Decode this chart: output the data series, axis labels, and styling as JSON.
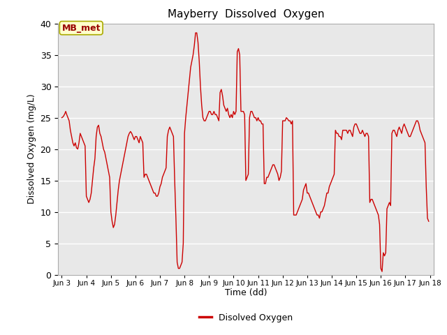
{
  "title": "Mayberry  Dissolved  Oxygen",
  "xlabel": "Time (dd)",
  "ylabel": "Dissolved Oxygen (mg/L)",
  "legend_label": "Disolved Oxygen",
  "annotation_text": "MB_met",
  "line_color": "#cc0000",
  "bg_color": "#e8e8e8",
  "ylim": [
    0,
    40
  ],
  "xlim_start": 2.85,
  "xlim_end": 18.15,
  "xtick_labels": [
    "Jun 3",
    "Jun 4",
    "Jun 5",
    "Jun 6",
    "Jun 7",
    "Jun 8",
    "Jun 9",
    "Jun 10",
    "Jun 11",
    "Jun 12",
    "Jun 13",
    "Jun 14",
    "Jun 15",
    "Jun 16",
    "Jun 17",
    "Jun 18"
  ],
  "xtick_positions": [
    3,
    4,
    5,
    6,
    7,
    8,
    9,
    10,
    11,
    12,
    13,
    14,
    15,
    16,
    17,
    18
  ],
  "ytick_positions": [
    0,
    5,
    10,
    15,
    20,
    25,
    30,
    35,
    40
  ],
  "x": [
    3.0,
    3.04,
    3.08,
    3.12,
    3.16,
    3.2,
    3.25,
    3.3,
    3.35,
    3.4,
    3.45,
    3.5,
    3.55,
    3.6,
    3.65,
    3.7,
    3.75,
    3.8,
    3.85,
    3.9,
    3.95,
    4.0,
    4.05,
    4.1,
    4.15,
    4.2,
    4.25,
    4.3,
    4.35,
    4.4,
    4.45,
    4.5,
    4.55,
    4.6,
    4.65,
    4.7,
    4.75,
    4.8,
    4.85,
    4.9,
    4.95,
    5.0,
    5.05,
    5.1,
    5.15,
    5.2,
    5.25,
    5.3,
    5.35,
    5.4,
    5.45,
    5.5,
    5.55,
    5.6,
    5.65,
    5.7,
    5.75,
    5.8,
    5.85,
    5.9,
    5.95,
    6.0,
    6.05,
    6.1,
    6.15,
    6.2,
    6.25,
    6.3,
    6.35,
    6.4,
    6.45,
    6.5,
    6.55,
    6.6,
    6.65,
    6.7,
    6.75,
    6.8,
    6.85,
    6.9,
    6.95,
    7.0,
    7.05,
    7.1,
    7.15,
    7.2,
    7.25,
    7.3,
    7.35,
    7.4,
    7.45,
    7.5,
    7.55,
    7.6,
    7.65,
    7.7,
    7.75,
    7.8,
    7.85,
    7.9,
    7.95,
    8.0,
    8.05,
    8.1,
    8.15,
    8.2,
    8.25,
    8.3,
    8.35,
    8.4,
    8.45,
    8.5,
    8.55,
    8.6,
    8.65,
    8.7,
    8.75,
    8.8,
    8.85,
    8.9,
    8.95,
    9.0,
    9.05,
    9.1,
    9.15,
    9.2,
    9.25,
    9.3,
    9.35,
    9.4,
    9.45,
    9.5,
    9.55,
    9.6,
    9.65,
    9.7,
    9.75,
    9.8,
    9.85,
    9.9,
    9.95,
    10.0,
    10.05,
    10.1,
    10.15,
    10.2,
    10.25,
    10.3,
    10.35,
    10.4,
    10.45,
    10.5,
    10.55,
    10.6,
    10.65,
    10.7,
    10.75,
    10.8,
    10.85,
    10.9,
    10.95,
    11.0,
    11.05,
    11.1,
    11.15,
    11.2,
    11.25,
    11.3,
    11.35,
    11.4,
    11.45,
    11.5,
    11.55,
    11.6,
    11.65,
    11.7,
    11.75,
    11.8,
    11.85,
    11.9,
    11.95,
    12.0,
    12.05,
    12.1,
    12.15,
    12.2,
    12.25,
    12.3,
    12.35,
    12.4,
    12.45,
    12.5,
    12.55,
    12.6,
    12.65,
    12.7,
    12.75,
    12.8,
    12.85,
    12.9,
    12.95,
    13.0,
    13.05,
    13.1,
    13.15,
    13.2,
    13.25,
    13.3,
    13.35,
    13.4,
    13.45,
    13.5,
    13.55,
    13.6,
    13.65,
    13.7,
    13.75,
    13.8,
    13.85,
    13.9,
    13.95,
    14.0,
    14.05,
    14.1,
    14.15,
    14.2,
    14.25,
    14.3,
    14.35,
    14.4,
    14.45,
    14.5,
    14.55,
    14.6,
    14.65,
    14.7,
    14.75,
    14.8,
    14.85,
    14.9,
    14.95,
    15.0,
    15.05,
    15.1,
    15.15,
    15.2,
    15.25,
    15.3,
    15.35,
    15.4,
    15.45,
    15.5,
    15.55,
    15.6,
    15.65,
    15.7,
    15.75,
    15.8,
    15.85,
    15.9,
    15.95,
    16.0,
    16.05,
    16.1,
    16.15,
    16.2,
    16.25,
    16.3,
    16.35,
    16.4,
    16.45,
    16.5,
    16.55,
    16.6,
    16.65,
    16.7,
    16.75,
    16.8,
    16.85,
    16.9,
    16.95,
    17.0,
    17.05,
    17.1,
    17.15,
    17.2,
    17.25,
    17.3,
    17.35,
    17.4,
    17.45,
    17.5,
    17.55,
    17.6,
    17.65,
    17.7,
    17.75,
    17.8,
    17.85,
    17.9,
    17.95
  ],
  "y": [
    25.0,
    25.1,
    25.3,
    25.6,
    26.0,
    25.5,
    25.0,
    24.5,
    23.0,
    22.0,
    21.0,
    20.5,
    21.0,
    20.2,
    20.0,
    21.0,
    22.5,
    22.0,
    21.5,
    21.0,
    20.5,
    12.5,
    12.0,
    11.5,
    12.0,
    13.0,
    15.0,
    17.0,
    18.5,
    22.0,
    23.5,
    23.8,
    22.5,
    22.0,
    21.0,
    20.0,
    19.5,
    18.5,
    17.5,
    16.5,
    15.5,
    10.0,
    8.5,
    7.5,
    8.0,
    9.5,
    11.5,
    13.5,
    15.0,
    16.0,
    17.0,
    18.0,
    19.0,
    20.0,
    21.0,
    22.0,
    22.5,
    22.8,
    22.5,
    22.0,
    21.5,
    22.0,
    22.0,
    21.5,
    21.0,
    22.0,
    21.5,
    21.0,
    15.5,
    16.0,
    16.0,
    15.5,
    15.0,
    14.5,
    14.0,
    13.5,
    13.0,
    13.0,
    12.5,
    12.5,
    13.0,
    14.0,
    14.5,
    15.5,
    16.0,
    16.5,
    17.0,
    22.0,
    23.0,
    23.5,
    23.0,
    22.5,
    22.0,
    15.0,
    9.0,
    2.0,
    1.0,
    1.0,
    1.5,
    2.0,
    5.0,
    22.5,
    25.0,
    27.0,
    29.0,
    31.0,
    33.0,
    34.0,
    35.0,
    36.5,
    38.5,
    38.5,
    37.0,
    34.0,
    30.0,
    27.0,
    25.0,
    24.5,
    24.5,
    25.0,
    25.5,
    26.0,
    26.0,
    25.5,
    25.5,
    26.0,
    25.5,
    25.5,
    25.0,
    24.5,
    29.0,
    29.5,
    28.5,
    27.0,
    26.5,
    26.0,
    26.5,
    25.5,
    25.0,
    25.5,
    25.0,
    26.0,
    25.5,
    26.0,
    35.5,
    36.0,
    35.0,
    26.0,
    26.0,
    26.0,
    25.5,
    15.0,
    15.5,
    16.0,
    25.0,
    26.0,
    26.0,
    25.5,
    25.0,
    25.0,
    24.5,
    25.0,
    24.5,
    24.5,
    24.0,
    24.0,
    14.5,
    14.5,
    15.5,
    15.5,
    16.0,
    16.5,
    17.0,
    17.5,
    17.5,
    17.0,
    16.5,
    16.0,
    15.0,
    15.5,
    16.5,
    24.5,
    24.5,
    24.5,
    25.0,
    24.8,
    24.5,
    24.5,
    24.0,
    24.5,
    9.5,
    9.5,
    9.5,
    10.0,
    10.5,
    11.0,
    11.5,
    12.0,
    13.5,
    14.0,
    14.5,
    13.0,
    13.0,
    12.5,
    12.0,
    11.5,
    11.0,
    10.5,
    10.0,
    9.5,
    9.5,
    9.0,
    10.0,
    10.0,
    10.5,
    11.0,
    12.0,
    13.0,
    13.0,
    14.0,
    14.5,
    15.0,
    15.5,
    16.0,
    23.0,
    22.5,
    22.5,
    22.0,
    22.0,
    21.5,
    23.0,
    23.0,
    23.0,
    23.0,
    22.5,
    23.0,
    23.0,
    22.5,
    22.0,
    23.5,
    24.0,
    24.0,
    23.5,
    23.0,
    22.5,
    22.5,
    23.0,
    22.5,
    22.0,
    22.5,
    22.5,
    22.0,
    11.5,
    12.0,
    12.0,
    11.5,
    11.0,
    10.5,
    10.0,
    9.5,
    8.0,
    1.0,
    0.5,
    3.5,
    3.0,
    3.5,
    10.5,
    11.0,
    11.5,
    11.0,
    22.5,
    23.0,
    23.0,
    22.5,
    22.0,
    23.0,
    23.5,
    23.0,
    22.5,
    23.5,
    24.0,
    23.5,
    23.0,
    22.5,
    22.0,
    22.0,
    22.5,
    23.0,
    23.5,
    24.0,
    24.5,
    24.5,
    24.0,
    23.0,
    22.5,
    22.0,
    21.5,
    21.0,
    14.0,
    9.0,
    8.5
  ]
}
